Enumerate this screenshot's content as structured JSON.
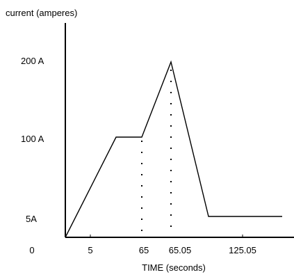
{
  "chart_data": {
    "type": "line",
    "title": "",
    "ylabel": "current (amperes)",
    "xlabel": "TIME (seconds)",
    "y_tick_labels": [
      "200 A",
      "100 A",
      "5A"
    ],
    "x_tick_labels": [
      "0",
      "5",
      "65",
      "65.05",
      "125.05"
    ],
    "series": [
      {
        "points": [
          {
            "x": "0",
            "y": 5
          },
          {
            "x": "5",
            "y": 100
          },
          {
            "x": "65",
            "y": 100
          },
          {
            "x": "65.05",
            "y": 200
          },
          {
            "x": "125.05",
            "y": 5
          },
          {
            "x": "end",
            "y": 5
          }
        ]
      }
    ],
    "dotted_markers_at_x": [
      "65",
      "65.05"
    ],
    "grid": false,
    "line_color": "#000000"
  }
}
